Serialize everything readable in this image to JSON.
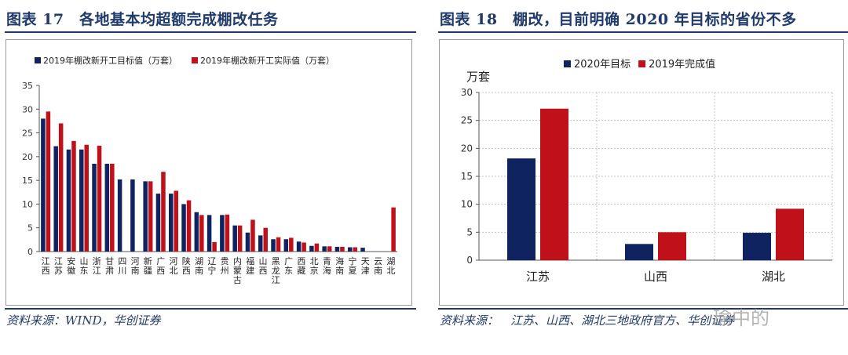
{
  "panels": [
    {
      "title": "图表 17　各地基本均超额完成棚改任务",
      "source": "资料来源：WIND，华创证券"
    },
    {
      "title": "图表 18　棚改，目前明确 2020 年目标的省份不多",
      "source": "资料来源：　江苏、山西、湖北三地政府官方、华创证券"
    }
  ],
  "watermark": "瑜中的",
  "colors": {
    "navy": "#0f2360",
    "red": "#c0101a",
    "title": "#1f3a6b"
  },
  "chart_data": [
    {
      "type": "bar",
      "title": "",
      "xlabel": "",
      "ylabel": "",
      "ylim": [
        0,
        35
      ],
      "yticks": [
        0,
        5,
        10,
        15,
        20,
        25,
        30,
        35
      ],
      "grid": false,
      "legend": "top",
      "categories": [
        "江西",
        "江苏",
        "安徽",
        "山东",
        "浙江",
        "甘肃",
        "四川",
        "河南",
        "新疆",
        "广西",
        "河北",
        "陕西",
        "湖南",
        "辽宁",
        "贵州",
        "内蒙古",
        "福建",
        "山西",
        "黑龙江",
        "广东",
        "西藏",
        "北京",
        "青海",
        "海南",
        "宁夏",
        "天津",
        "云南",
        "湖北"
      ],
      "series": [
        {
          "name": "2019年棚改新开工目标值（万套）",
          "color": "#0f2360",
          "values": [
            28,
            22.2,
            21.5,
            21.5,
            18.5,
            18.5,
            15.2,
            15.2,
            14.8,
            12.2,
            12.2,
            10,
            8.3,
            7.7,
            7.7,
            5.5,
            4,
            3.4,
            2.6,
            2.6,
            2.1,
            1.2,
            1.1,
            1,
            0.9,
            0.8,
            null,
            null
          ]
        },
        {
          "name": "2019年棚改新开工实际值（万套）",
          "color": "#c0101a",
          "values": [
            29.5,
            27,
            23.3,
            22.5,
            22.3,
            18.5,
            null,
            null,
            14.8,
            16.8,
            12.8,
            10.8,
            7.7,
            2,
            7.8,
            5.5,
            6.7,
            5,
            3,
            2.9,
            1.9,
            1.7,
            1.1,
            1,
            0.9,
            null,
            null,
            9.3
          ]
        }
      ]
    },
    {
      "type": "bar",
      "title": "",
      "xlabel": "",
      "ylabel": "万套",
      "ylim": [
        0,
        30
      ],
      "yticks": [
        0,
        5,
        10,
        15,
        20,
        25,
        30
      ],
      "grid": true,
      "legend": "top",
      "categories": [
        "江苏",
        "山西",
        "湖北"
      ],
      "series": [
        {
          "name": "2020年目标",
          "color": "#0f2360",
          "values": [
            18.2,
            2.9,
            4.9
          ]
        },
        {
          "name": "2019年完成值",
          "color": "#c0101a",
          "values": [
            27.1,
            5,
            9.2
          ]
        }
      ]
    }
  ]
}
